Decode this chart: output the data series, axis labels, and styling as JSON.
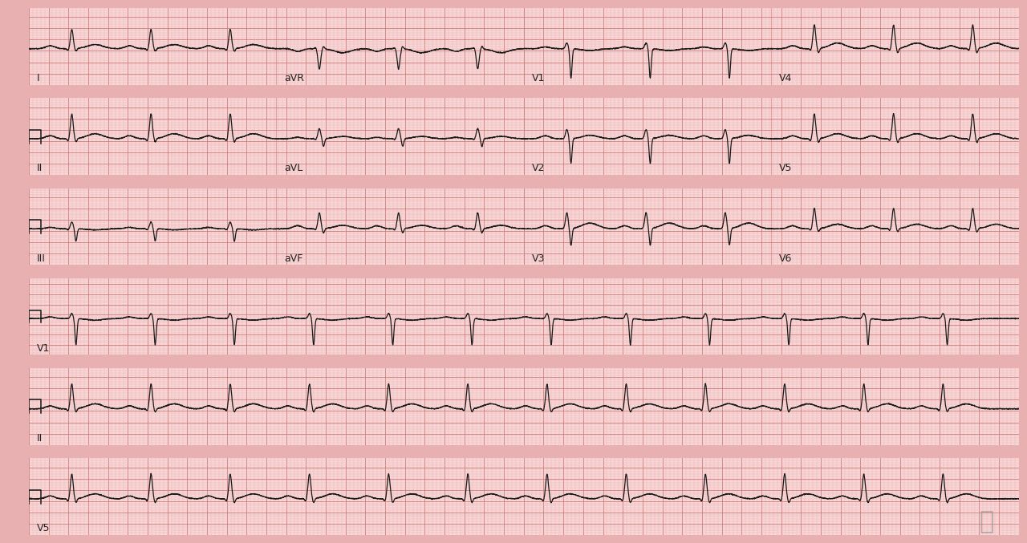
{
  "bg_color": "#f5c8c8",
  "strip_bg": "#f9d8d8",
  "grid_major_color": "#d08080",
  "grid_minor_color": "#e8b0b0",
  "inter_row_color": "#f0c0c0",
  "ecg_color": "#1a1a1a",
  "ecg_linewidth": 0.9,
  "label_color": "#222222",
  "label_fontsize": 9,
  "heart_rate": 75,
  "pr_interval": 0.26,
  "qrs_duration": 0.15,
  "fig_bg": "#e8b0b0",
  "row_labels_4col": [
    [
      "I",
      "aVR",
      "V1",
      "V4"
    ],
    [
      "II",
      "aVL",
      "V2",
      "V5"
    ],
    [
      "III",
      "aVF",
      "V3",
      "V6"
    ]
  ],
  "row_labels_1col": [
    "V1",
    "II",
    "V5"
  ]
}
